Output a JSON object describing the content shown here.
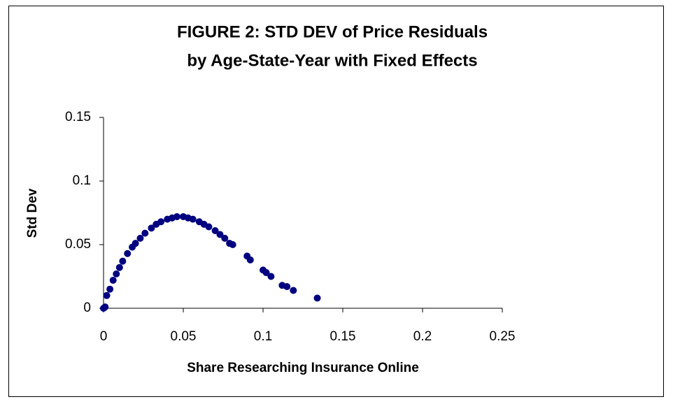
{
  "chart_data": {
    "type": "scatter",
    "title": [
      "FIGURE 2: STD DEV of Price Residuals",
      "by Age-State-Year with Fixed Effects"
    ],
    "xlabel": "Share Researching Insurance Online",
    "ylabel": "Std Dev",
    "color": "#000080",
    "xlim": [
      0,
      0.25
    ],
    "xticks": [
      0,
      0.05,
      0.1,
      0.15,
      0.2,
      0.25
    ],
    "ylim": [
      0,
      0.15
    ],
    "yticks": [
      0,
      0.05,
      0.1,
      0.15
    ],
    "grid": false,
    "x": [
      0,
      0.001,
      0.002,
      0.004,
      0.006,
      0.008,
      0.01,
      0.012,
      0.015,
      0.018,
      0.02,
      0.023,
      0.026,
      0.03,
      0.033,
      0.036,
      0.04,
      0.043,
      0.046,
      0.05,
      0.053,
      0.056,
      0.06,
      0.063,
      0.066,
      0.07,
      0.073,
      0.076,
      0.079,
      0.081,
      0.09,
      0.092,
      0.1,
      0.102,
      0.105,
      0.112,
      0.115,
      0.119,
      0.134
    ],
    "y": [
      0,
      0.001,
      0.01,
      0.015,
      0.022,
      0.027,
      0.032,
      0.037,
      0.043,
      0.048,
      0.051,
      0.055,
      0.059,
      0.063,
      0.066,
      0.068,
      0.07,
      0.071,
      0.072,
      0.072,
      0.071,
      0.07,
      0.068,
      0.066,
      0.064,
      0.061,
      0.058,
      0.055,
      0.051,
      0.05,
      0.041,
      0.038,
      0.03,
      0.028,
      0.025,
      0.018,
      0.017,
      0.014,
      0.008
    ]
  }
}
